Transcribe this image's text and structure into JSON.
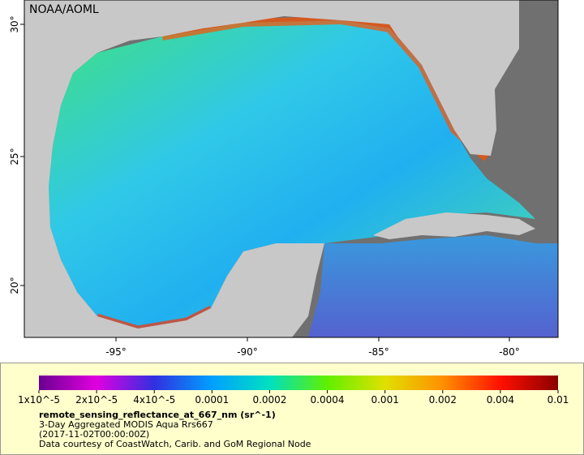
{
  "map": {
    "watermark": "NOAA/AOML",
    "lon_ticks": [
      "-95°",
      "-90°",
      "-85°",
      "-80°"
    ],
    "lat_ticks": [
      "30°",
      "25°",
      "20°"
    ]
  },
  "colorbar": {
    "labels": [
      "1x10^-5",
      "2x10^-5",
      "4x10^-5",
      "0.0001",
      "0.0002",
      "0.0004",
      "0.001",
      "0.002",
      "0.004",
      "0.01"
    ],
    "colors": [
      "#6a0090",
      "#e000e0",
      "#3030e0",
      "#00a0ff",
      "#00e0c0",
      "#60f000",
      "#e0e000",
      "#ff9000",
      "#ff1000",
      "#8a0000"
    ]
  },
  "caption": {
    "variable": "remote_sensing_reflectance_at_667_nm (sr^-1)",
    "lines": [
      "3-Day Aggregated MODIS Aqua Rrs667",
      "(2017-11-02T00:00:00Z)",
      "Data courtesy of CoastWatch, Carib. and GoM Regional Node"
    ]
  }
}
